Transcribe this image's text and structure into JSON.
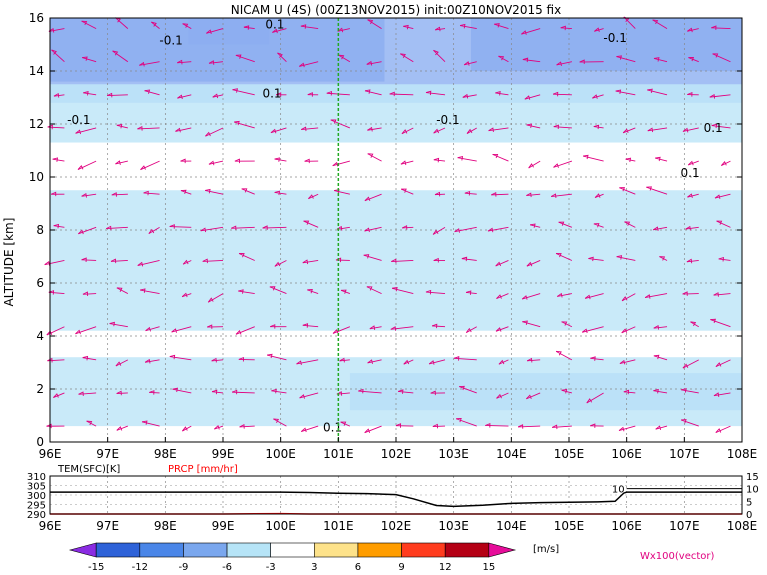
{
  "chart_data": [
    {
      "type": "heatmap",
      "title": "NICAM U (4S) (00Z13NOV2015) init:00Z10NOV2015 fix",
      "ylabel": "ALTITUDE [km]",
      "xlim": [
        96,
        108
      ],
      "ylim": [
        0,
        16
      ],
      "x_ticks": [
        "96E",
        "97E",
        "98E",
        "99E",
        "100E",
        "101E",
        "102E",
        "103E",
        "104E",
        "105E",
        "106E",
        "107E",
        "108E"
      ],
      "y_ticks": [
        "0",
        "2",
        "4",
        "6",
        "8",
        "10",
        "12",
        "14",
        "16"
      ],
      "grid": true,
      "marker_line_x": 101,
      "marker_line_color": "#22aa22",
      "contour_labels": [
        {
          "text": "-0.1",
          "x": 96.5,
          "y": 12.0
        },
        {
          "text": "-0.1",
          "x": 98.1,
          "y": 15.0
        },
        {
          "text": "0.1",
          "x": 99.9,
          "y": 15.6
        },
        {
          "text": "0.1",
          "x": 99.85,
          "y": 13.0
        },
        {
          "text": "-0.1",
          "x": 102.9,
          "y": 12.0
        },
        {
          "text": "-0.1",
          "x": 105.8,
          "y": 15.1
        },
        {
          "text": "0.1",
          "x": 107.5,
          "y": 11.7
        },
        {
          "text": "0.1",
          "x": 107.1,
          "y": 10.0
        },
        {
          "text": "0.1",
          "x": 100.9,
          "y": 0.4
        }
      ],
      "shading_bands": [
        {
          "level": "-15..-12",
          "color": "#4f6fd8",
          "regions": [
            {
              "x": [
                98.4,
                99.8
              ],
              "y": [
                15.0,
                16.0
              ]
            }
          ]
        },
        {
          "level": "-12..-9",
          "color": "#6b8fe8",
          "regions": [
            {
              "x": [
                96.0,
                101.8
              ],
              "y": [
                13.6,
                16.0
              ]
            },
            {
              "x": [
                103.3,
                108.0
              ],
              "y": [
                14.0,
                16.0
              ]
            }
          ]
        },
        {
          "level": "-9..-6",
          "color": "#93b4f2",
          "regions": [
            {
              "x": [
                96.0,
                108.0
              ],
              "y": [
                12.8,
                16.0
              ]
            },
            {
              "x": [
                101.2,
                108.0
              ],
              "y": [
                1.2,
                2.6
              ]
            }
          ]
        },
        {
          "level": "-6..-3",
          "color": "#bfe6f8",
          "regions": [
            {
              "x": [
                96.0,
                108.0
              ],
              "y": [
                11.3,
                13.5
              ]
            },
            {
              "x": [
                96.0,
                108.0
              ],
              "y": [
                4.2,
                9.5
              ]
            },
            {
              "x": [
                96.0,
                108.0
              ],
              "y": [
                0.6,
                3.2
              ]
            }
          ]
        }
      ],
      "vector_label": "Wx100(vector)",
      "vector_color": "#e0007f"
    },
    {
      "type": "line",
      "left_label": "TEM(SFC)[K]",
      "right_label": "PRCP [mm/hr]",
      "x": [
        96,
        97,
        98,
        99,
        100,
        100.5,
        101,
        101.5,
        102,
        102.3,
        102.7,
        103,
        103.5,
        104,
        104.5,
        105,
        105.5,
        105.8,
        105.95,
        106,
        107,
        108
      ],
      "series": [
        {
          "name": "TEM(SFC)[K]",
          "color": "#000000",
          "values": [
            301.5,
            301.5,
            301.5,
            301.5,
            301.5,
            301.3,
            300.9,
            300.7,
            300.2,
            298.0,
            294.5,
            294.0,
            294.6,
            295.6,
            296.0,
            296.2,
            296.4,
            296.7,
            301.0,
            301.5,
            301.5,
            301.5
          ]
        },
        {
          "name": "PRCP [mm/hr]",
          "color": "#ff0000",
          "values": [
            0,
            0,
            0,
            0,
            0.15,
            0,
            0,
            0,
            0,
            0,
            0,
            0,
            0,
            0,
            0,
            0,
            0,
            0,
            0,
            0,
            0,
            0
          ]
        }
      ],
      "left_ticks": [
        "290",
        "295",
        "300",
        "305",
        "310"
      ],
      "right_ticks": [
        "0",
        "5",
        "10",
        "15"
      ],
      "left_ylim": [
        290,
        310
      ],
      "right_ylim": [
        0,
        15
      ],
      "reference_value_right": "10",
      "x_ticks": [
        "96E",
        "97E",
        "98E",
        "99E",
        "100E",
        "101E",
        "102E",
        "103E",
        "104E",
        "105E",
        "106E",
        "107E",
        "108E"
      ]
    },
    {
      "type": "colorbar",
      "boundaries": [
        "-15",
        "-12",
        "-9",
        "-6",
        "-3",
        "3",
        "6",
        "9",
        "12",
        "15"
      ],
      "colors": [
        "#8a2be2",
        "#2e62d8",
        "#4a86e8",
        "#7aa7ee",
        "#b6e4f7",
        "#ffffff",
        "#fde28a",
        "#ff9d00",
        "#ff3c1e",
        "#b40014",
        "#e60d9a"
      ],
      "unit": "[m/s]"
    }
  ]
}
